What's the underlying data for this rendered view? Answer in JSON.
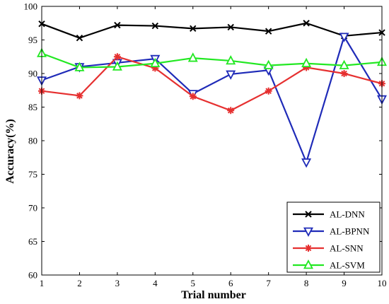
{
  "chart_data": {
    "type": "line",
    "title": "",
    "xlabel": "Trial number",
    "ylabel": "Accuracy(%)",
    "x": [
      1,
      2,
      3,
      4,
      5,
      6,
      7,
      8,
      9,
      10
    ],
    "xlim": [
      1,
      10
    ],
    "ylim": [
      60,
      100
    ],
    "xticks": [
      1,
      2,
      3,
      4,
      5,
      6,
      7,
      8,
      9,
      10
    ],
    "yticks": [
      60,
      65,
      70,
      75,
      80,
      85,
      90,
      95,
      100
    ],
    "grid": false,
    "legend_position": "bottom-right",
    "series": [
      {
        "name": "AL-DNN",
        "color": "#000000",
        "marker": "x",
        "values": [
          97.4,
          95.3,
          97.2,
          97.1,
          96.7,
          96.9,
          96.3,
          97.5,
          95.6,
          96.1
        ]
      },
      {
        "name": "AL-BPNN",
        "color": "#1f2bb8",
        "marker": "triangle-down",
        "values": [
          89.0,
          91.0,
          91.6,
          92.2,
          87.0,
          89.9,
          90.5,
          76.8,
          95.5,
          86.2
        ]
      },
      {
        "name": "AL-SNN",
        "color": "#e63030",
        "marker": "asterisk",
        "values": [
          87.4,
          86.7,
          92.5,
          90.8,
          86.6,
          84.5,
          87.4,
          90.9,
          90.0,
          88.5
        ]
      },
      {
        "name": "AL-SVM",
        "color": "#22e822",
        "marker": "triangle-up",
        "values": [
          93.0,
          90.9,
          91.0,
          91.5,
          92.3,
          91.9,
          91.2,
          91.5,
          91.2,
          91.7
        ]
      }
    ]
  }
}
